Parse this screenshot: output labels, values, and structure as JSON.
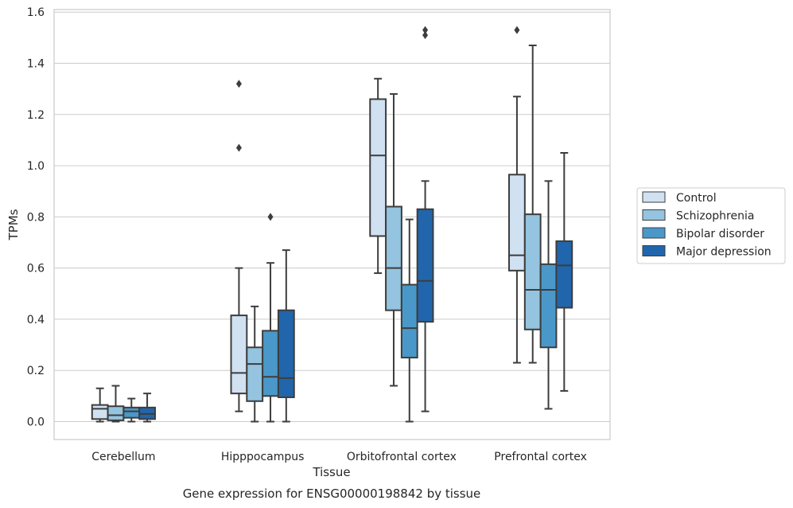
{
  "caption": "Gene expression for ENSG00000198842 by tissue",
  "chart_data": {
    "type": "box",
    "title": "",
    "xlabel": "Tissue",
    "ylabel": "TPMs",
    "ylim": [
      -0.07,
      1.61
    ],
    "yticks": [
      0.0,
      0.2,
      0.4,
      0.6,
      0.8,
      1.0,
      1.2,
      1.4,
      1.6
    ],
    "ytick_labels": [
      "0.0",
      "0.2",
      "0.4",
      "0.6",
      "0.8",
      "1.0",
      "1.2",
      "1.4",
      "1.6"
    ],
    "grid": "horizontal",
    "legend_position": "right",
    "categories": [
      "Cerebellum",
      "Hipppocampus",
      "Orbitofrontal cortex",
      "Prefrontal cortex"
    ],
    "series": [
      {
        "name": "Control",
        "color": "#d0e1f2",
        "boxes": [
          {
            "whisker_low": 0.0,
            "q1": 0.01,
            "median": 0.05,
            "q3": 0.065,
            "whisker_high": 0.13,
            "outliers": []
          },
          {
            "whisker_low": 0.04,
            "q1": 0.11,
            "median": 0.19,
            "q3": 0.415,
            "whisker_high": 0.6,
            "outliers": [
              1.07,
              1.32
            ]
          },
          {
            "whisker_low": 0.58,
            "q1": 0.725,
            "median": 1.04,
            "q3": 1.26,
            "whisker_high": 1.34,
            "outliers": []
          },
          {
            "whisker_low": 0.23,
            "q1": 0.59,
            "median": 0.65,
            "q3": 0.965,
            "whisker_high": 1.27,
            "outliers": [
              1.53
            ]
          }
        ]
      },
      {
        "name": "Schizophrenia",
        "color": "#94c4df",
        "boxes": [
          {
            "whisker_low": 0.0,
            "q1": 0.005,
            "median": 0.025,
            "q3": 0.06,
            "whisker_high": 0.14,
            "outliers": []
          },
          {
            "whisker_low": 0.0,
            "q1": 0.08,
            "median": 0.225,
            "q3": 0.29,
            "whisker_high": 0.45,
            "outliers": []
          },
          {
            "whisker_low": 0.14,
            "q1": 0.435,
            "median": 0.6,
            "q3": 0.84,
            "whisker_high": 1.28,
            "outliers": []
          },
          {
            "whisker_low": 0.23,
            "q1": 0.36,
            "median": 0.515,
            "q3": 0.81,
            "whisker_high": 1.47,
            "outliers": []
          }
        ]
      },
      {
        "name": "Bipolar disorder",
        "color": "#4a98c9",
        "boxes": [
          {
            "whisker_low": 0.0,
            "q1": 0.015,
            "median": 0.04,
            "q3": 0.055,
            "whisker_high": 0.09,
            "outliers": []
          },
          {
            "whisker_low": 0.0,
            "q1": 0.1,
            "median": 0.175,
            "q3": 0.355,
            "whisker_high": 0.62,
            "outliers": [
              0.8
            ]
          },
          {
            "whisker_low": 0.0,
            "q1": 0.25,
            "median": 0.365,
            "q3": 0.535,
            "whisker_high": 0.79,
            "outliers": []
          },
          {
            "whisker_low": 0.05,
            "q1": 0.29,
            "median": 0.515,
            "q3": 0.615,
            "whisker_high": 0.94,
            "outliers": []
          }
        ]
      },
      {
        "name": "Major depression",
        "color": "#2166ac",
        "boxes": [
          {
            "whisker_low": 0.0,
            "q1": 0.01,
            "median": 0.03,
            "q3": 0.055,
            "whisker_high": 0.11,
            "outliers": []
          },
          {
            "whisker_low": 0.0,
            "q1": 0.095,
            "median": 0.17,
            "q3": 0.435,
            "whisker_high": 0.67,
            "outliers": []
          },
          {
            "whisker_low": 0.04,
            "q1": 0.39,
            "median": 0.55,
            "q3": 0.83,
            "whisker_high": 0.94,
            "outliers": [
              1.51,
              1.53
            ]
          },
          {
            "whisker_low": 0.12,
            "q1": 0.445,
            "median": 0.61,
            "q3": 0.705,
            "whisker_high": 1.05,
            "outliers": []
          }
        ]
      }
    ]
  },
  "colors": {
    "edge": "#3d3d3d",
    "grid": "#cccccc",
    "frame": "#cccccc",
    "text": "#262626"
  }
}
